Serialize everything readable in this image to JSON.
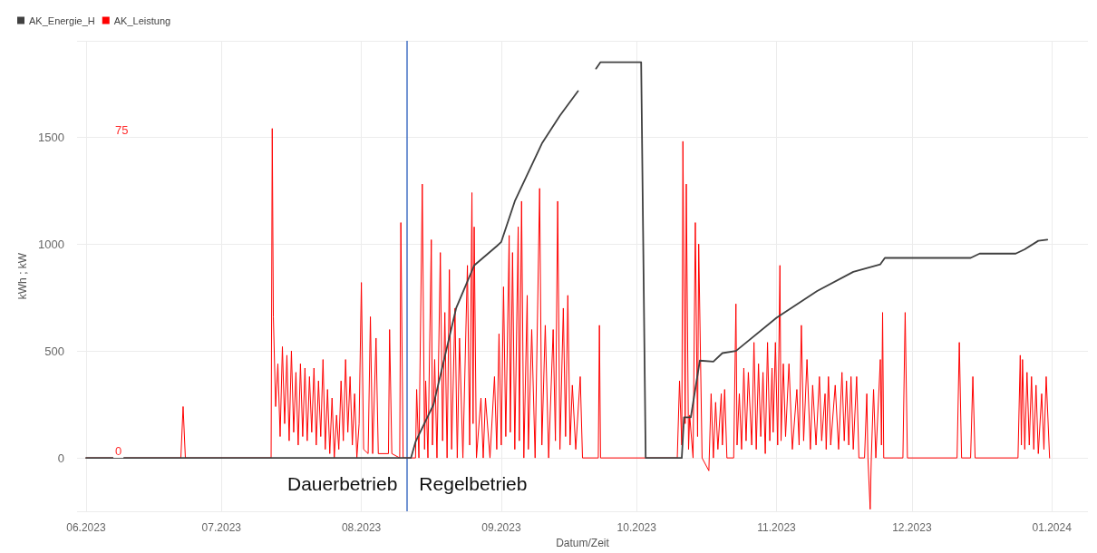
{
  "chart_data": {
    "type": "line",
    "xlabel": "Datum/Zeit",
    "ylabel": "kWh ; kW",
    "legend": "top left",
    "grid": true,
    "marker": "none",
    "line_style": "solid",
    "xlim": [
      "2023-05-30",
      "2024-01-09"
    ],
    "xticks": [
      {
        "value": "2023-06-01",
        "label": "06.2023"
      },
      {
        "value": "2023-07-01",
        "label": "07.2023"
      },
      {
        "value": "2023-08-01",
        "label": "08.2023"
      },
      {
        "value": "2023-09-01",
        "label": "09.2023"
      },
      {
        "value": "2023-10-01",
        "label": "10.2023"
      },
      {
        "value": "2023-11-01",
        "label": "11.2023"
      },
      {
        "value": "2023-12-01",
        "label": "12.2023"
      },
      {
        "value": "2024-01-01",
        "label": "01.2024"
      }
    ],
    "ylim": [
      -250,
      1950
    ],
    "yticks": [
      0,
      500,
      1000,
      1500
    ],
    "y2lim": [
      -12.5,
      97.5
    ],
    "y2ticks": [
      0,
      75
    ],
    "ref_lines": [
      {
        "axis": "x",
        "value": "2023-08-11",
        "color": "#4472c4"
      }
    ],
    "annotations": [
      "Dauerbetrieb",
      "Regelbetrieb"
    ],
    "series": [
      {
        "name": "AK_Energie_H",
        "color": "#404040",
        "x": [
          "2023-06-01",
          "2023-08-12",
          "2023-08-13",
          "2023-08-17",
          "2023-08-22",
          "2023-08-26",
          "2023-08-31",
          "2023-09-01",
          "2023-09-04",
          "2023-09-10",
          "2023-09-14",
          "2023-09-18",
          "2023-09-20",
          "2023-09-22",
          "2023-09-23",
          "2023-10-02",
          "2023-10-03",
          "2023-10-11",
          "2023-10-11T12:00",
          "2023-10-13",
          "2023-10-15",
          "2023-10-18",
          "2023-10-20",
          "2023-10-23",
          "2023-11-01",
          "2023-11-10",
          "2023-11-18",
          "2023-11-24",
          "2023-11-25",
          "2023-12-14",
          "2023-12-16",
          "2023-12-24",
          "2023-12-26",
          "2023-12-29",
          "2023-12-31"
        ],
        "values": [
          0,
          0,
          75,
          250,
          700,
          900,
          990,
          1010,
          1200,
          1470,
          1600,
          1715,
          null,
          1820,
          1850,
          1850,
          0,
          0,
          190,
          190,
          455,
          450,
          490,
          500,
          655,
          780,
          870,
          905,
          935,
          935,
          955,
          955,
          975,
          1015,
          1020
        ]
      },
      {
        "name": "AK_Leistung",
        "color": "#ff0000",
        "axis": "y2",
        "x": [
          "2023-06-01",
          "2023-06-22",
          "2023-06-22T12:00",
          "2023-06-23",
          "2023-07-12",
          "2023-07-12T06:00",
          "2023-07-12T12:00",
          "2023-07-13",
          "2023-07-13T12:00",
          "2023-07-14",
          "2023-07-14T12:00",
          "2023-07-15",
          "2023-07-15T12:00",
          "2023-07-16",
          "2023-07-16T12:00",
          "2023-07-17",
          "2023-07-17T12:00",
          "2023-07-18",
          "2023-07-18T12:00",
          "2023-07-19",
          "2023-07-19T12:00",
          "2023-07-20",
          "2023-07-20T12:00",
          "2023-07-21",
          "2023-07-21T12:00",
          "2023-07-22",
          "2023-07-22T12:00",
          "2023-07-23",
          "2023-07-23T12:00",
          "2023-07-24",
          "2023-07-24T12:00",
          "2023-07-25",
          "2023-07-25T12:00",
          "2023-07-26",
          "2023-07-26T12:00",
          "2023-07-27",
          "2023-07-27T12:00",
          "2023-07-28",
          "2023-07-28T12:00",
          "2023-07-29",
          "2023-07-29T12:00",
          "2023-07-30",
          "2023-07-30T12:00",
          "2023-07-31",
          "2023-07-31T12:00",
          "2023-08-01",
          "2023-08-01T12:00",
          "2023-08-02T12:00",
          "2023-08-03",
          "2023-08-03T12:00",
          "2023-08-04T06:00",
          "2023-08-04T18:00",
          "2023-08-07",
          "2023-08-07T06:00",
          "2023-08-07T18:00",
          "2023-08-09T12:00",
          "2023-08-09T18:00",
          "2023-08-10T06:00",
          "2023-08-13",
          "2023-08-13T06:00",
          "2023-08-13T18:00",
          "2023-08-14T12:00",
          "2023-08-15",
          "2023-08-15T06:00",
          "2023-08-15T18:00",
          "2023-08-16T12:00",
          "2023-08-16T18:00",
          "2023-08-17T06:00",
          "2023-08-17T18:00",
          "2023-08-18T12:00",
          "2023-08-19",
          "2023-08-19T12:00",
          "2023-08-20",
          "2023-08-20T12:00",
          "2023-08-21",
          "2023-08-21T18:00",
          "2023-08-22T06:00",
          "2023-08-22T18:00",
          "2023-08-23T12:00",
          "2023-08-24T12:00",
          "2023-08-25",
          "2023-08-25T12:00",
          "2023-08-25T18:00",
          "2023-08-26",
          "2023-08-26T12:00",
          "2023-08-27T12:00",
          "2023-08-28",
          "2023-08-28T12:00",
          "2023-08-29T12:00",
          "2023-08-30T12:00",
          "2023-08-31",
          "2023-08-31T12:00",
          "2023-09-01",
          "2023-09-01T12:00",
          "2023-09-02",
          "2023-09-02T18:00",
          "2023-09-03",
          "2023-09-03T12:00",
          "2023-09-04",
          "2023-09-04T18:00",
          "2023-09-05",
          "2023-09-05T12:00",
          "2023-09-06",
          "2023-09-06T18:00",
          "2023-09-07",
          "2023-09-07T18:00",
          "2023-09-08T12:00",
          "2023-09-09T12:00",
          "2023-09-10",
          "2023-09-10T18:00",
          "2023-09-11T12:00",
          "2023-09-12T12:00",
          "2023-09-13",
          "2023-09-13T12:00",
          "2023-09-14",
          "2023-09-14T18:00",
          "2023-09-15T06:00",
          "2023-09-15T18:00",
          "2023-09-16T06:00",
          "2023-09-16T18:00",
          "2023-09-17T12:00",
          "2023-09-18T12:00",
          "2023-09-19",
          "2023-09-22T12:00",
          "2023-09-22T18:00",
          "2023-09-23",
          "2023-10-10",
          "2023-10-10T12:00",
          "2023-10-11",
          "2023-10-11T06:00",
          "2023-10-11T18:00",
          "2023-10-12",
          "2023-10-12T12:00",
          "2023-10-12T18:00",
          "2023-10-13T12:00",
          "2023-10-14",
          "2023-10-14T12:00",
          "2023-10-14T18:00",
          "2023-10-15T12:00",
          "2023-10-17",
          "2023-10-17T12:00",
          "2023-10-18",
          "2023-10-18T12:00",
          "2023-10-19",
          "2023-10-19T18:00",
          "2023-10-20",
          "2023-10-20T12:00",
          "2023-10-21",
          "2023-10-22T12:00",
          "2023-10-23",
          "2023-10-23T06:00",
          "2023-10-23T18:00",
          "2023-10-24T06:00",
          "2023-10-24T18:00",
          "2023-10-25T06:00",
          "2023-10-25T18:00",
          "2023-10-26T12:00",
          "2023-10-27",
          "2023-10-27T12:00",
          "2023-10-28",
          "2023-10-28T12:00",
          "2023-10-29",
          "2023-10-29T12:00",
          "2023-10-30",
          "2023-10-30T12:00",
          "2023-10-31",
          "2023-10-31T06:00",
          "2023-10-31T18:00",
          "2023-11-01T06:00",
          "2023-11-01T18:00",
          "2023-11-02",
          "2023-11-02T12:00",
          "2023-11-03",
          "2023-11-03T18:00",
          "2023-11-04T12:00",
          "2023-11-05T12:00",
          "2023-11-06",
          "2023-11-06T12:00",
          "2023-11-07",
          "2023-11-07T18:00",
          "2023-11-08T12:00",
          "2023-11-09",
          "2023-11-09T18:00",
          "2023-11-10T12:00",
          "2023-11-11",
          "2023-11-11T18:00",
          "2023-11-12",
          "2023-11-12T12:00",
          "2023-11-13",
          "2023-11-14",
          "2023-11-14T18:00",
          "2023-11-15T12:00",
          "2023-11-16",
          "2023-11-16T12:00",
          "2023-11-17",
          "2023-11-17T12:00",
          "2023-11-18",
          "2023-11-18T18:00",
          "2023-11-19T06:00",
          "2023-11-20T12:00",
          "2023-11-21",
          "2023-11-21T06:00",
          "2023-11-21T18:00",
          "2023-11-22",
          "2023-11-22T12:00",
          "2023-11-23",
          "2023-11-24",
          "2023-11-24T06:00",
          "2023-11-24T12:00",
          "2023-11-24T18:00",
          "2023-11-29",
          "2023-11-29T12:00",
          "2023-11-30",
          "2023-12-11",
          "2023-12-11T12:00",
          "2023-12-12",
          "2023-12-14",
          "2023-12-14T12:00",
          "2023-12-15",
          "2023-12-24T12:00",
          "2023-12-25",
          "2023-12-25T06:00",
          "2023-12-25T12:00",
          "2023-12-26",
          "2023-12-26T12:00",
          "2023-12-27",
          "2023-12-27T12:00",
          "2023-12-28",
          "2023-12-28T12:00",
          "2023-12-29",
          "2023-12-29T18:00",
          "2023-12-30T06:00",
          "2023-12-30T18:00",
          "2023-12-31T12:00"
        ],
        "values": [
          0,
          0,
          12,
          0,
          0,
          77,
          33,
          12,
          22,
          5,
          26,
          8,
          24,
          4,
          25,
          6,
          20,
          3,
          22,
          5,
          21,
          4,
          19,
          6,
          21,
          3,
          18,
          5,
          23,
          2,
          16,
          1,
          14,
          0,
          10,
          2,
          18,
          4,
          23,
          6,
          19,
          3,
          15,
          0,
          8,
          41,
          2,
          1,
          33,
          1,
          28,
          1,
          1,
          30,
          1,
          0,
          55,
          0,
          0,
          16,
          0,
          64,
          2,
          18,
          0,
          51,
          3,
          23,
          0,
          48,
          4,
          34,
          0,
          44,
          2,
          35,
          0,
          28,
          0,
          45,
          3,
          62,
          8,
          54,
          0,
          14,
          0,
          14,
          0,
          19,
          2,
          29,
          3,
          40,
          5,
          52,
          6,
          48,
          2,
          54,
          4,
          60,
          0,
          38,
          2,
          30,
          0,
          63,
          3,
          31,
          0,
          30,
          4,
          60,
          2,
          35,
          5,
          38,
          3,
          17,
          2,
          19,
          0,
          0,
          31,
          0,
          0,
          18,
          3,
          74,
          8,
          64,
          2,
          10,
          0,
          55,
          5,
          50,
          0,
          -3,
          15,
          0,
          13,
          2,
          15,
          3,
          16,
          0,
          0,
          36,
          3,
          15,
          2,
          21,
          4,
          20,
          3,
          27,
          2,
          22,
          5,
          20,
          1,
          27,
          4,
          21,
          6,
          27,
          3,
          45,
          4,
          22,
          5,
          22,
          2,
          16,
          3,
          31,
          4,
          23,
          2,
          17,
          3,
          19,
          4,
          15,
          2,
          19,
          3,
          17,
          2,
          20,
          4,
          18,
          3,
          19,
          2,
          19,
          0,
          0,
          15,
          0,
          -12,
          0,
          16,
          0,
          23,
          3,
          34,
          0,
          0,
          34,
          0,
          0,
          27,
          0,
          0,
          19,
          0,
          0,
          24,
          3,
          23,
          2,
          20,
          3,
          19,
          2,
          17,
          1,
          15,
          2,
          19,
          0
        ]
      }
    ]
  }
}
